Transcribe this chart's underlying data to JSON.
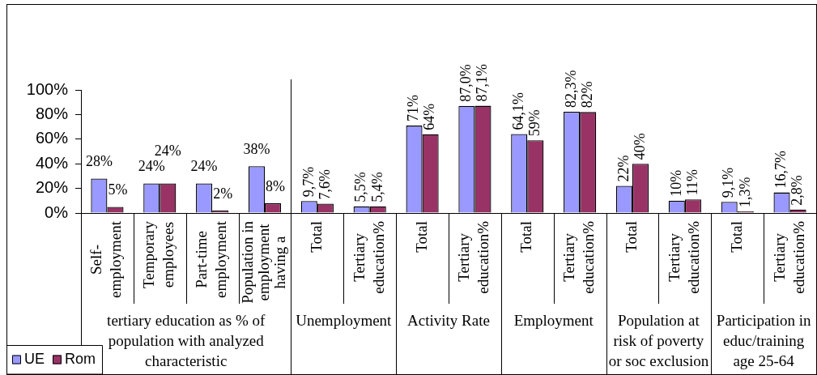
{
  "chart_data": {
    "type": "bar",
    "categories": [
      "Self-employment",
      "Temporary employees",
      "Part-time employment",
      "Population in employment having a",
      "Total",
      "Tertiary education%",
      "Total",
      "Tertiary education%",
      "Total",
      "Tertiary education%",
      "Total",
      "Tertiary education%",
      "Total",
      "Tertiary education%"
    ],
    "series": [
      {
        "name": "UE",
        "color": "#9999ff",
        "values": [
          28,
          24,
          24,
          38,
          9.7,
          5.5,
          71,
          87.0,
          64.1,
          82.3,
          22,
          10,
          9.1,
          16.7
        ],
        "value_labels": [
          "28%",
          "24%",
          "24%",
          "38%",
          "9,7%",
          "5,5%",
          "71%",
          "87,0%",
          "64,1%",
          "82,3%",
          "22%",
          "10%",
          "9,1%",
          "16,7%"
        ]
      },
      {
        "name": "Rom",
        "color": "#993366",
        "values": [
          5,
          24,
          2,
          8,
          7.6,
          5.4,
          64,
          87.1,
          59,
          82,
          40,
          11,
          1.3,
          2.8
        ],
        "value_labels": [
          "5%",
          "24%",
          "2%",
          "8%",
          "7,6%",
          "5,4%",
          "64%",
          "87,1%",
          "59%",
          "82%",
          "40%",
          "11%",
          "1,3%",
          "2,8%"
        ]
      }
    ],
    "ylim": [
      0,
      100
    ],
    "yticks": [
      {
        "value": 0,
        "label": "0%"
      },
      {
        "value": 20,
        "label": "20%"
      },
      {
        "value": 40,
        "label": "40%"
      },
      {
        "value": 60,
        "label": "60%"
      },
      {
        "value": 80,
        "label": "80%"
      },
      {
        "value": 100,
        "label": "100%"
      }
    ],
    "legend": "bottom left",
    "annotations": [
      "tertiary education as % of population with analyzed characteristic",
      "Unemployment",
      "Activity Rate",
      "Employment",
      "Population at risk of poverty or soc exclusion",
      "Participation in educ/training age 25-64"
    ]
  }
}
